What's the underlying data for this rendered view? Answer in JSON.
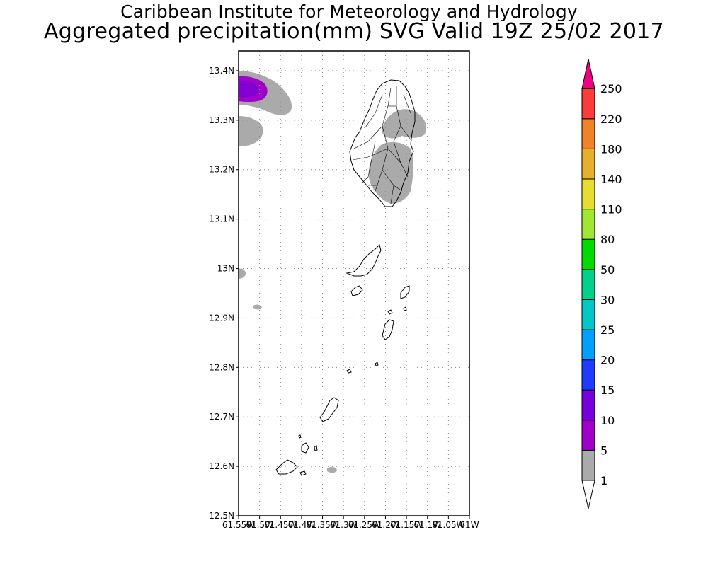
{
  "title": {
    "line1": "Caribbean Institute for Meteorology and Hydrology",
    "line2": "Aggregated precipitation(mm) SVG Valid 19Z 25/02 2017"
  },
  "map": {
    "lon_range": [
      -61.55,
      -61.0
    ],
    "lat_range": [
      12.5,
      13.44
    ],
    "grid": "dotted",
    "y_ticks": [
      "12.5N",
      "12.6N",
      "12.7N",
      "12.8N",
      "12.9N",
      "13N",
      "13.1N",
      "13.2N",
      "13.3N",
      "13.4N"
    ],
    "x_ticks": [
      "61.55W",
      "61.5W",
      "61.45W",
      "61.4W",
      "61.35W",
      "61.3W",
      "61.25W",
      "61.2W",
      "61.15W",
      "61.1W",
      "61.05W",
      "61W"
    ]
  },
  "colorbar": {
    "levels": [
      {
        "label": "1",
        "color": "#aaaaaa"
      },
      {
        "label": "5",
        "color": "#a000c8"
      },
      {
        "label": "10",
        "color": "#7800dc"
      },
      {
        "label": "15",
        "color": "#1e3cff"
      },
      {
        "label": "20",
        "color": "#00a0ff"
      },
      {
        "label": "25",
        "color": "#00c8c8"
      },
      {
        "label": "30",
        "color": "#00d28c"
      },
      {
        "label": "50",
        "color": "#00dc00"
      },
      {
        "label": "80",
        "color": "#a0e632"
      },
      {
        "label": "110",
        "color": "#e6dc32"
      },
      {
        "label": "140",
        "color": "#e6af2d"
      },
      {
        "label": "180",
        "color": "#f08228"
      },
      {
        "label": "220",
        "color": "#fa3c3c"
      },
      {
        "label": "250",
        "color": "#f00082"
      }
    ],
    "top_arrow_color": "#f00082",
    "bottom_arrow_color": "#ffffff"
  },
  "rain_colors": {
    "light": "#aaaaaa",
    "medium": "#a000c8",
    "heavy": "#8200d2"
  }
}
